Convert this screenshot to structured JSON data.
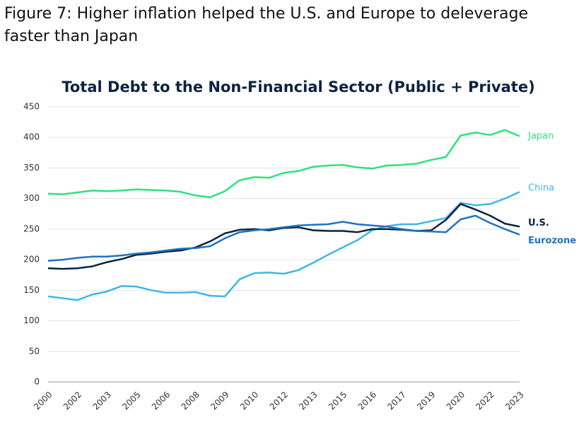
{
  "chart_data": {
    "type": "line",
    "heading": "Figure 7: Higher inflation helped the U.S. and Europe to deleverage faster than Japan",
    "title": "Total Debt to the Non-Financial Sector (Public + Private)",
    "categories": [
      "2000",
      null,
      "2002",
      null,
      "2003",
      null,
      "2005",
      null,
      "2006",
      null,
      "2008",
      null,
      "2009",
      null,
      "2010",
      null,
      "2012",
      null,
      "2013",
      null,
      "2015",
      null,
      "2016",
      null,
      "2017",
      null,
      "2019",
      null,
      "2020",
      null,
      "2022",
      null,
      "2023"
    ],
    "series": [
      {
        "name": "Japan",
        "color": "#2ee27c",
        "values": [
          308,
          307,
          310,
          313,
          312,
          313,
          315,
          314,
          313,
          311,
          305,
          302,
          312,
          330,
          335,
          334,
          342,
          345,
          352,
          354,
          355,
          351,
          349,
          354,
          355,
          357,
          363,
          368,
          403,
          408,
          404,
          412,
          402
        ]
      },
      {
        "name": "China",
        "color": "#41b6e6",
        "values": [
          140,
          137,
          134,
          143,
          148,
          157,
          156,
          150,
          146,
          146,
          147,
          141,
          140,
          168,
          178,
          179,
          177,
          183,
          195,
          208,
          220,
          232,
          248,
          255,
          258,
          258,
          263,
          268,
          293,
          289,
          291,
          300,
          311
        ]
      },
      {
        "name": "U.S.",
        "color": "#0c2340",
        "values": [
          186,
          185,
          186,
          189,
          196,
          201,
          208,
          210,
          213,
          215,
          220,
          230,
          243,
          249,
          250,
          248,
          252,
          253,
          248,
          247,
          247,
          245,
          250,
          250,
          249,
          247,
          248,
          265,
          291,
          282,
          272,
          259,
          254
        ]
      },
      {
        "name": "Eurozone",
        "color": "#1f74bf",
        "values": [
          198,
          200,
          203,
          205,
          205,
          207,
          210,
          212,
          215,
          218,
          219,
          222,
          235,
          245,
          248,
          250,
          253,
          256,
          257,
          258,
          262,
          258,
          256,
          254,
          250,
          247,
          246,
          245,
          266,
          272,
          260,
          250,
          241
        ]
      }
    ],
    "ylim": [
      0,
      450
    ],
    "yticks": [
      0,
      50,
      100,
      150,
      200,
      250,
      300,
      350,
      400,
      450
    ],
    "grid": true
  }
}
